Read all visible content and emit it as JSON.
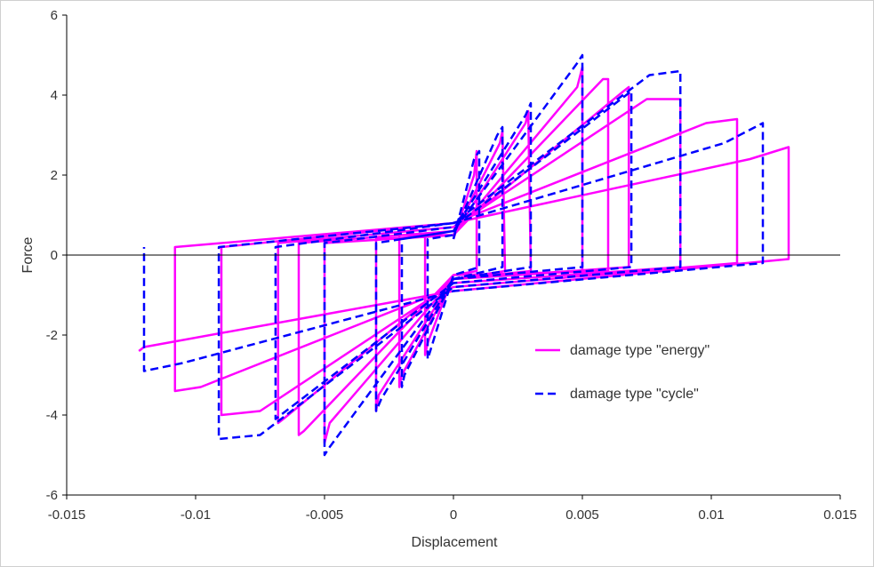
{
  "chart_data": {
    "type": "line",
    "title": "",
    "xlabel": "Displacement",
    "ylabel": "Force",
    "xlim": [
      -0.015,
      0.015
    ],
    "ylim": [
      -6,
      6
    ],
    "x_ticks": [
      "-0.015",
      "-0.01",
      "-0.005",
      "0",
      "0.005",
      "0.01",
      "0.015"
    ],
    "x_tick_values": [
      -0.015,
      -0.01,
      -0.005,
      0,
      0.005,
      0.01,
      0.015
    ],
    "y_ticks": [
      "-6",
      "-4",
      "-2",
      "0",
      "2",
      "4",
      "6"
    ],
    "y_tick_values": [
      -6,
      -4,
      -2,
      0,
      2,
      4,
      6
    ],
    "grid": false,
    "legend_position": "center-right",
    "series": [
      {
        "name": "damage type \"energy\"",
        "color": "#ff00ff",
        "line_style": "solid",
        "x": [
          0,
          0.0008,
          0.0009,
          0.0009,
          0,
          -0.001,
          -0.0011,
          -0.0011,
          0,
          0.0018,
          0.0019,
          0.002,
          0,
          -0.002,
          -0.0021,
          -0.0021,
          0,
          0.0028,
          0.0029,
          0.003,
          0,
          -0.0029,
          -0.003,
          -0.003,
          0,
          0.0048,
          0.005,
          0.005,
          0,
          -0.0048,
          -0.005,
          -0.005,
          0,
          0.0058,
          0.006,
          0.006,
          0,
          -0.0058,
          -0.006,
          -0.006,
          0,
          0.0066,
          0.0068,
          0.0068,
          0,
          -0.0066,
          -0.0068,
          -0.0068,
          0,
          0.0075,
          0.0088,
          0.0088,
          0,
          -0.0075,
          -0.009,
          -0.009,
          0,
          0.0098,
          0.011,
          0.011,
          0,
          -0.0098,
          -0.0108,
          -0.0108,
          0,
          0.0115,
          0.013,
          0.013,
          0,
          -0.012,
          -0.0122
        ],
        "y": [
          0.4,
          2.0,
          2.6,
          -0.4,
          -0.5,
          -2.2,
          -2.5,
          0.5,
          0.5,
          2.8,
          3.1,
          -0.4,
          -0.6,
          -3.0,
          -3.3,
          0.5,
          0.5,
          3.3,
          3.6,
          -0.4,
          -0.6,
          -3.5,
          -3.9,
          0.4,
          0.5,
          4.2,
          4.7,
          -0.4,
          -0.6,
          -4.2,
          -4.7,
          0.3,
          0.5,
          4.4,
          4.4,
          -0.4,
          -0.5,
          -4.4,
          -4.5,
          0.3,
          0.6,
          4.1,
          4.2,
          -0.3,
          -0.6,
          -4.1,
          -4.2,
          0.3,
          0.7,
          3.9,
          3.9,
          -0.3,
          -0.7,
          -3.9,
          -4.0,
          0.2,
          0.8,
          3.3,
          3.4,
          -0.2,
          -0.8,
          -3.3,
          -3.4,
          0.2,
          0.8,
          2.4,
          2.7,
          -0.1,
          -0.9,
          -2.3,
          -2.4
        ]
      },
      {
        "name": "damage type \"cycle\"",
        "color": "#0000ff",
        "line_style": "dashed",
        "x": [
          0,
          0.0008,
          0.001,
          0.001,
          0,
          -0.0009,
          -0.001,
          -0.001,
          0,
          0.0017,
          0.0019,
          0.0019,
          0,
          -0.0019,
          -0.002,
          -0.002,
          0,
          0.0028,
          0.003,
          0.003,
          0,
          -0.0028,
          -0.003,
          -0.003,
          0,
          0.0048,
          0.005,
          0.005,
          0,
          -0.0048,
          -0.005,
          -0.005,
          0,
          0.0067,
          0.0069,
          0.0069,
          0,
          -0.0067,
          -0.0069,
          -0.0069,
          0,
          0.0076,
          0.0088,
          0.0088,
          0,
          -0.0075,
          -0.0091,
          -0.0091,
          0,
          0.0105,
          0.012,
          0.012,
          0,
          -0.0105,
          -0.012,
          -0.012
        ],
        "y": [
          0.4,
          2.4,
          2.6,
          -0.3,
          -0.5,
          -2.4,
          -2.6,
          0.4,
          0.5,
          3.0,
          3.2,
          -0.3,
          -0.6,
          -3.0,
          -3.3,
          0.4,
          0.6,
          3.5,
          3.8,
          -0.3,
          -0.6,
          -3.6,
          -3.9,
          0.3,
          0.6,
          4.8,
          5.0,
          -0.3,
          -0.6,
          -4.8,
          -5.0,
          0.3,
          0.7,
          4.0,
          4.1,
          -0.3,
          -0.7,
          -4.0,
          -4.1,
          0.2,
          0.8,
          4.5,
          4.6,
          -0.3,
          -0.8,
          -4.5,
          -4.6,
          0.2,
          0.8,
          2.8,
          3.3,
          -0.2,
          -0.9,
          -2.7,
          -2.9,
          0.2
        ]
      }
    ]
  }
}
